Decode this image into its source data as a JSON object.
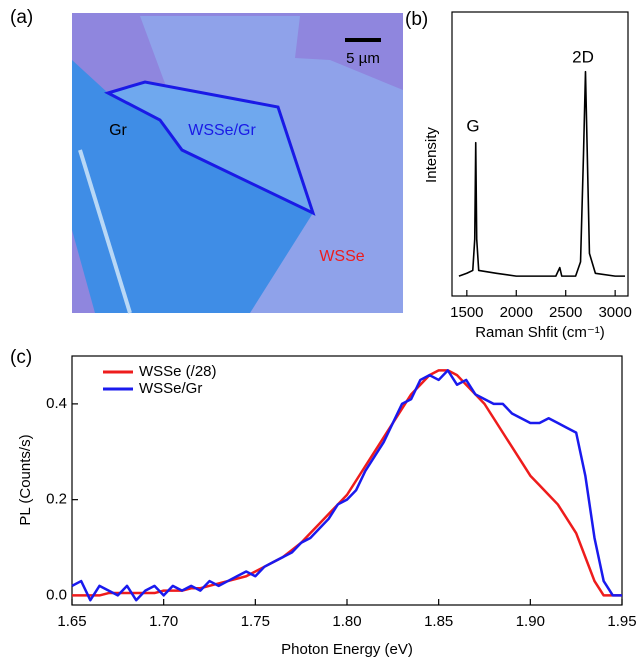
{
  "image_panel": {
    "label": "(a)",
    "scale_bar": "5 µm",
    "regions": [
      "Gr",
      "WSSe/Gr",
      "WSSe"
    ]
  },
  "chart_data": [
    {
      "type": "line",
      "label": "(b)",
      "x_label": "Raman Shfit (cm⁻¹)",
      "y_label": "Intensity",
      "annotations": [
        "G",
        "2D"
      ],
      "x": [
        1420,
        1500,
        1560,
        1580,
        1590,
        1600,
        1620,
        1800,
        2000,
        2200,
        2400,
        2440,
        2460,
        2600,
        2650,
        2680,
        2700,
        2715,
        2740,
        2800,
        3000,
        3100
      ],
      "series": [
        {
          "color": "#000000",
          "values": [
            0.07,
            0.08,
            0.09,
            0.2,
            0.54,
            0.2,
            0.09,
            0.08,
            0.07,
            0.07,
            0.07,
            0.1,
            0.07,
            0.07,
            0.12,
            0.5,
            0.79,
            0.55,
            0.15,
            0.08,
            0.07,
            0.07
          ]
        }
      ],
      "xlim": [
        1350,
        3130
      ],
      "ylim": [
        0,
        1
      ],
      "xticks": [
        1500,
        2000,
        2500,
        3000
      ]
    },
    {
      "type": "line",
      "label": "(c)",
      "x_label": "Photon Energy (eV)",
      "y_label": "PL (Counts/s)",
      "legend": "upper left",
      "x": [
        1.65,
        1.655,
        1.66,
        1.665,
        1.67,
        1.675,
        1.68,
        1.685,
        1.69,
        1.695,
        1.7,
        1.705,
        1.71,
        1.715,
        1.72,
        1.725,
        1.73,
        1.735,
        1.74,
        1.745,
        1.75,
        1.755,
        1.76,
        1.765,
        1.77,
        1.775,
        1.78,
        1.785,
        1.79,
        1.795,
        1.8,
        1.805,
        1.81,
        1.815,
        1.82,
        1.825,
        1.83,
        1.835,
        1.84,
        1.845,
        1.85,
        1.855,
        1.86,
        1.865,
        1.87,
        1.875,
        1.88,
        1.885,
        1.89,
        1.895,
        1.9,
        1.905,
        1.91,
        1.915,
        1.92,
        1.925,
        1.93,
        1.935,
        1.94,
        1.945,
        1.95
      ],
      "series": [
        {
          "name": "WSSe (/28)",
          "color": "#ee1c1c",
          "values": [
            0,
            0,
            0,
            0,
            0.005,
            0.005,
            0.005,
            0.005,
            0.005,
            0.005,
            0.01,
            0.01,
            0.01,
            0.015,
            0.015,
            0.02,
            0.025,
            0.03,
            0.035,
            0.04,
            0.05,
            0.06,
            0.07,
            0.08,
            0.095,
            0.11,
            0.13,
            0.15,
            0.17,
            0.19,
            0.21,
            0.24,
            0.27,
            0.3,
            0.33,
            0.36,
            0.39,
            0.42,
            0.44,
            0.46,
            0.47,
            0.47,
            0.46,
            0.44,
            0.42,
            0.4,
            0.37,
            0.34,
            0.31,
            0.28,
            0.25,
            0.23,
            0.21,
            0.19,
            0.16,
            0.13,
            0.08,
            0.03,
            0,
            0,
            0
          ]
        },
        {
          "name": "WSSe/Gr",
          "color": "#1a1aee",
          "values": [
            0.02,
            0.03,
            -0.01,
            0.02,
            0.01,
            0,
            0.02,
            -0.01,
            0.01,
            0.02,
            0,
            0.02,
            0.01,
            0.02,
            0.01,
            0.03,
            0.02,
            0.03,
            0.04,
            0.05,
            0.04,
            0.06,
            0.07,
            0.08,
            0.09,
            0.11,
            0.12,
            0.14,
            0.16,
            0.19,
            0.2,
            0.22,
            0.26,
            0.29,
            0.32,
            0.36,
            0.4,
            0.41,
            0.45,
            0.46,
            0.45,
            0.47,
            0.44,
            0.45,
            0.42,
            0.41,
            0.4,
            0.4,
            0.38,
            0.37,
            0.36,
            0.36,
            0.37,
            0.36,
            0.35,
            0.34,
            0.25,
            0.12,
            0.03,
            0,
            0
          ]
        }
      ],
      "xlim": [
        1.65,
        1.95
      ],
      "ylim": [
        -0.02,
        0.5
      ],
      "xticks": [
        {
          "value": 1.65,
          "label": "1.65"
        },
        {
          "value": 1.7,
          "label": "1.70"
        },
        {
          "value": 1.75,
          "label": "1.75"
        },
        {
          "value": 1.8,
          "label": "1.80"
        },
        {
          "value": 1.85,
          "label": "1.85"
        },
        {
          "value": 1.9,
          "label": "1.90"
        },
        {
          "value": 1.95,
          "label": "1.95"
        }
      ],
      "yticks": [
        {
          "value": 0,
          "label": "0.0"
        },
        0.2,
        0.4
      ]
    }
  ]
}
